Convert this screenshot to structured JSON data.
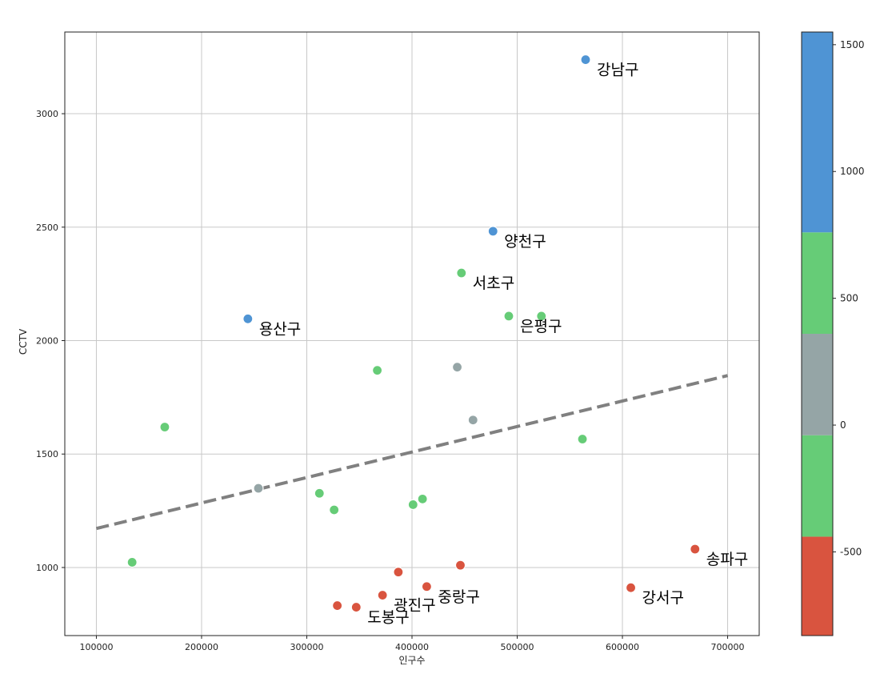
{
  "chart_data": {
    "type": "scatter",
    "xlabel": "인구수",
    "ylabel": "CCTV",
    "xlim": [
      70000,
      730000
    ],
    "ylim": [
      700,
      3360
    ],
    "x_ticks": [
      100000,
      200000,
      300000,
      400000,
      500000,
      600000,
      700000
    ],
    "y_ticks": [
      1000,
      1500,
      2000,
      2500,
      3000
    ],
    "grid": true,
    "points": [
      {
        "x": 565000,
        "y": 3238,
        "color": "#4f94d4",
        "label": "강남구"
      },
      {
        "x": 477000,
        "y": 2482,
        "color": "#4f94d4",
        "label": "양천구"
      },
      {
        "x": 447000,
        "y": 2298,
        "color": "#66cc77",
        "label": "서초구"
      },
      {
        "x": 492000,
        "y": 2108,
        "color": "#66cc77",
        "label": "은평구"
      },
      {
        "x": 523000,
        "y": 2108,
        "color": "#66cc77",
        "label": ""
      },
      {
        "x": 244000,
        "y": 2096,
        "color": "#4f94d4",
        "label": "용산구"
      },
      {
        "x": 443000,
        "y": 1883,
        "color": "#95a5a6",
        "label": ""
      },
      {
        "x": 367000,
        "y": 1869,
        "color": "#66cc77",
        "label": ""
      },
      {
        "x": 458000,
        "y": 1650,
        "color": "#95a5a6",
        "label": ""
      },
      {
        "x": 165000,
        "y": 1619,
        "color": "#66cc77",
        "label": ""
      },
      {
        "x": 562000,
        "y": 1566,
        "color": "#66cc77",
        "label": ""
      },
      {
        "x": 254000,
        "y": 1349,
        "color": "#95a5a6",
        "label": ""
      },
      {
        "x": 312000,
        "y": 1327,
        "color": "#66cc77",
        "label": ""
      },
      {
        "x": 410000,
        "y": 1302,
        "color": "#66cc77",
        "label": ""
      },
      {
        "x": 401000,
        "y": 1277,
        "color": "#66cc77",
        "label": ""
      },
      {
        "x": 326000,
        "y": 1254,
        "color": "#66cc77",
        "label": ""
      },
      {
        "x": 669000,
        "y": 1081,
        "color": "#d9543f",
        "label": "송파구"
      },
      {
        "x": 134000,
        "y": 1023,
        "color": "#66cc77",
        "label": ""
      },
      {
        "x": 446000,
        "y": 1010,
        "color": "#d9543f",
        "label": ""
      },
      {
        "x": 387000,
        "y": 980,
        "color": "#d9543f",
        "label": ""
      },
      {
        "x": 414000,
        "y": 916,
        "color": "#d9543f",
        "label": "중랑구"
      },
      {
        "x": 608000,
        "y": 911,
        "color": "#d9543f",
        "label": "강서구"
      },
      {
        "x": 372000,
        "y": 878,
        "color": "#d9543f",
        "label": "광진구"
      },
      {
        "x": 329000,
        "y": 832,
        "color": "#d9543f",
        "label": ""
      },
      {
        "x": 347000,
        "y": 825,
        "color": "#d9543f",
        "label": "도봉구"
      }
    ],
    "trend_line": {
      "x": [
        100000,
        700000
      ],
      "y": [
        1172,
        1846
      ],
      "color": "#808080",
      "style": "dashed"
    },
    "colorbar": {
      "range": [
        -830,
        1550
      ],
      "ticks": [
        -500,
        0,
        500,
        1000,
        1500
      ],
      "segments": [
        {
          "from": -830,
          "to": -440,
          "color": "#d9543f"
        },
        {
          "from": -440,
          "to": -40,
          "color": "#66cc77"
        },
        {
          "from": -40,
          "to": 360,
          "color": "#95a5a6"
        },
        {
          "from": 360,
          "to": 760,
          "color": "#66cc77"
        },
        {
          "from": 760,
          "to": 1550,
          "color": "#4f94d4"
        }
      ]
    }
  }
}
